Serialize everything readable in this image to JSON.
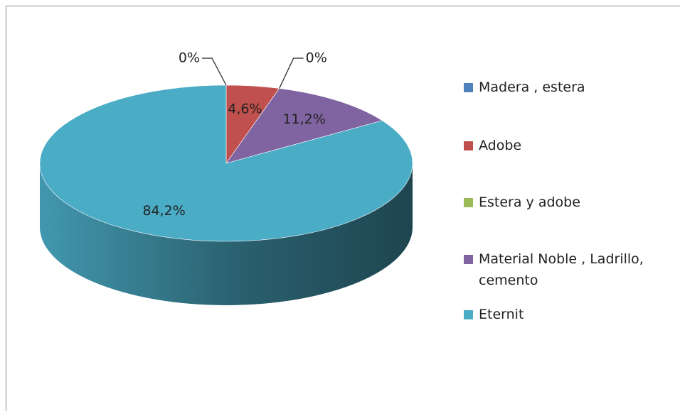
{
  "chart_data": {
    "type": "pie3d",
    "categories": [
      "Madera , estera",
      "Adobe",
      "Estera y adobe",
      "Material Noble , Ladrillo, cemento",
      "Eternit"
    ],
    "values": [
      0,
      4.6,
      0,
      11.2,
      84.2
    ],
    "value_labels": [
      "0%",
      "4,6%",
      "0%",
      "11,2%",
      "84,2%"
    ],
    "colors": [
      "#4f81bd",
      "#c0504d",
      "#9bbb59",
      "#8064a2",
      "#4bacc6"
    ],
    "legend": "right"
  }
}
